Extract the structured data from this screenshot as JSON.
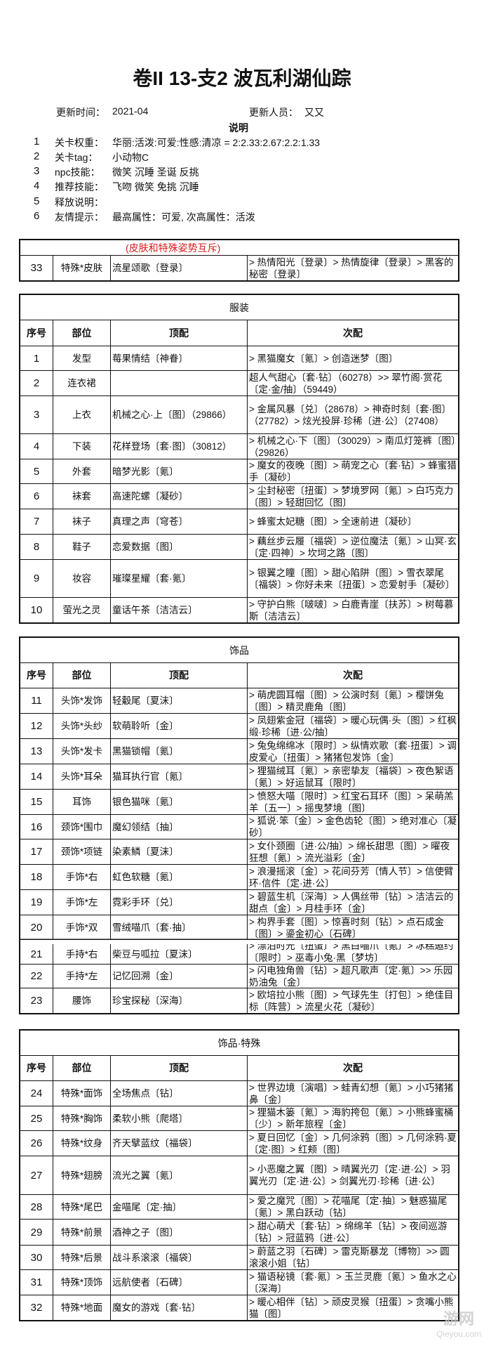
{
  "title": "卷II 13-支2 波瓦利湖仙踪",
  "update_time_label": "更新时间：",
  "update_time": "2021-04",
  "updater_label": "更新人员：",
  "updater": "又又",
  "notes_heading": "说明",
  "notes": [
    {
      "num": "1",
      "label": "关卡权重：",
      "value": "华丽:活泼:可爱:性感:清凉 = 2:2.33:2.67:2.2:1.33"
    },
    {
      "num": "2",
      "label": "关卡tag：",
      "value": "小动物C"
    },
    {
      "num": "3",
      "label": "npc技能：",
      "value": "微笑 沉睡 圣诞 反挑"
    },
    {
      "num": "4",
      "label": "推荐技能：",
      "value": "飞吻 微笑 免挑 沉睡"
    },
    {
      "num": "5",
      "label": "释放说明：",
      "value": ""
    },
    {
      "num": "6",
      "label": "友情提示：",
      "value": "最高属性：可爱, 次高属性：活泼"
    }
  ],
  "headers": [
    "序号",
    "部位",
    "顶配",
    "次配"
  ],
  "skin_table": {
    "note": "(皮肤和特殊姿势互斥)",
    "rows": [
      [
        "33",
        "特殊*皮肤",
        "流星颂歌〔登录〕",
        "> 热情阳光〔登录〕> 热情旋律〔登录〕> 黑客的秘密〔登录〕"
      ]
    ]
  },
  "clothing_table": {
    "title": "服装",
    "rows": [
      [
        "1",
        "发型",
        "莓果情结〔神眷〕",
        "> 黑猫魔女〔氪〕> 创造迷梦〔图〕"
      ],
      [
        "2",
        "连衣裙",
        "",
        "超人气甜心〔套·钻〕（60278）>> 翠竹阁·赏花〔定·金/抽〕（59449）"
      ],
      [
        "3",
        "上衣",
        "机械之心·上〔图〕（29866）",
        "> 金属风暴〔兑〕（28678）> 神奇时刻〔套·图〕（27782）> 炫光投屏·珍稀〔进·公〕（27408）"
      ],
      [
        "4",
        "下装",
        "花样登场〔套·图〕（30812）",
        "> 机械之心·下〔图〕（30029）> 南瓜灯笼裤〔图〕（29826）"
      ],
      [
        "5",
        "外套",
        "暗梦光影〔氪〕",
        "> 魔女的夜晚〔图〕> 萌宠之心〔套·钻〕> 蜂蜜猎手〔凝砂〕"
      ],
      [
        "6",
        "袜套",
        "高速陀螺〔凝砂〕",
        "> 尘封秘密〔扭蛋〕> 梦境罗网〔氪〕> 白巧克力〔图〕> 轻甜回忆〔图〕"
      ],
      [
        "7",
        "袜子",
        "真理之声〔穹苍〕",
        "> 蜂蜜太妃糖〔图〕> 全速前进〔凝砂〕"
      ],
      [
        "8",
        "鞋子",
        "恋爱数据〔图〕",
        "> 藕丝步云履〔福袋〕> 逆位魔法〔氪〕> 山冥·玄〔定·四神〕> 坎坷之路〔图〕"
      ],
      [
        "9",
        "妆容",
        "璀璨星耀〔套·氪〕",
        "> 银翼之瞳〔图〕> 甜心陷阱〔图〕> 雪衣翠尾〔福袋〕> 你好未来〔扭蛋〕> 恋爱射手〔凝砂〕"
      ],
      [
        "10",
        "萤光之灵",
        "童话午茶〔洁洁云〕",
        "> 守护白熊〔啵啵〕> 白鹿青崖〔扶苏〕> 树莓慕斯〔洁洁云〕"
      ]
    ]
  },
  "accessory_table": {
    "title": "饰品",
    "rows": [
      [
        "11",
        "头饰*发饰",
        "轻觳尾〔夏沫〕",
        "> 萌虎圆耳帽〔图〕> 公演时刻〔氪〕> 樱饼兔〔图〕> 精灵鹿角〔图〕"
      ],
      [
        "12",
        "头饰*头纱",
        "软萌聆听〔金〕",
        "> 凤翅紫金冠〔福袋〕> 暖心玩偶·头〔图〕> 红枫缎·珍稀〔进·公/抽〕"
      ],
      [
        "13",
        "头饰*发卡",
        "黑猫锁帽〔氪〕",
        "> 兔兔绵绵冰〔限时〕> 纵情欢歌〔套·扭蛋〕> 调皮爱心〔扭蛋〕> 猪猪包发饰〔金〕"
      ],
      [
        "14",
        "头饰*耳朵",
        "猫耳执行官〔氪〕",
        "> 狸猫绒耳〔氪〕> 亲密挚友〔福袋〕> 夜色絮语〔氪〕> 好运鼠耳〔限时〕"
      ],
      [
        "15",
        "耳饰",
        "银色猫咪〔氪〕",
        "> 愤怒大喵〔限时〕> 红宝石耳环〔图〕> 呆萌羔羊〔五一〕> 摇曳梦境〔图〕"
      ],
      [
        "16",
        "颈饰*围巾",
        "魔幻领结〔抽〕",
        "> 狐说·笨〔金〕> 金色齿轮〔图〕> 绝对准心〔凝砂〕"
      ],
      [
        "17",
        "颈饰*项链",
        "染素鳞〔夏沫〕",
        "> 女仆颈圈〔进·公/抽〕> 绵长甜思〔图〕> 曜夜狂想〔氪〕> 流光溢彩〔金〕"
      ],
      [
        "18",
        "手饰*右",
        "虹色软糖〔氪〕",
        "> 浪漫摇滚〔金〕> 花间芬芳〔情人节〕> 信使臂环·信件〔定·进·公〕"
      ],
      [
        "19",
        "手饰*左",
        "霓彩手环〔兑〕",
        "> 碧蓝生机〔深海〕> 人偶丝带〔钻〕> 洁洁云的甜点〔金〕> 月桂手环〔金〕"
      ],
      [
        "20",
        "手饰*双",
        "雪绒喵爪〔套·抽〕",
        "> 构界手套〔图〕> 惊喜时刻〔钻〕> 点石成金〔图〕> 鎏金初心〔石碑〕"
      ],
      [
        "21",
        "手持*右",
        "柴豆与呱拉〔夏沫〕",
        "> 漂泊时光〔扭蛋〕> 黑白喵爪〔氪〕> 冰糕邀约〔限时〕> 巫毒小兔·黑〔梦坊〕"
      ],
      [
        "22",
        "手持*左",
        "记忆回溯〔金〕",
        "> 闪电独角兽〔钻〕> 超凡歌声〔定·氪〕>> 乐园奶油兔〔金〕"
      ],
      [
        "23",
        "腰饰",
        "珍宝探秘〔深海〕",
        "> 欧培拉小熊〔图〕> 气球先生〔打包〕> 绝佳目标〔阵营〕> 流星火花〔凝砂〕"
      ]
    ]
  },
  "special_table": {
    "title": "饰品·特殊",
    "rows": [
      [
        "24",
        "特殊*面饰",
        "全场焦点〔钻〕",
        "> 世界边境〔演唱〕> 蛙青幻想〔氪〕> 小巧猪猪鼻〔金〕"
      ],
      [
        "25",
        "特殊*胸饰",
        "柔软小熊〔爬塔〕",
        "> 狸猫木篓〔氪〕> 海豹挎包〔氪〕> 小熊蜂蜜桶〔少〕> 新年旅程〔金〕"
      ],
      [
        "26",
        "特殊*纹身",
        "齐天擘蓝纹〔福袋〕",
        "> 夏日回忆〔金〕> 几何涂鸦〔图〕> 几何涂鸦·夏〔定·图〕> 红颊〔图〕"
      ],
      [
        "27",
        "特殊*翅膀",
        "流光之翼〔氪〕",
        "> 小恶魔之翼〔图〕> 晴翼光刃〔定·进·公〕> 羽翼光刃〔定·进·公〕> 剑翼光刃·珍稀〔进·公〕"
      ],
      [
        "28",
        "特殊*尾巴",
        "金喵尾〔定·抽〕",
        "> 爱之魔咒〔图〕> 花喵尾〔定·抽〕> 魅惑猫尾〔氪〕> 黑白跃动〔钻〕"
      ],
      [
        "29",
        "特殊*前景",
        "酒神之子〔图〕",
        "> 甜心萌犬〔套·钻〕> 绵绵羊〔钻〕> 夜间巡游〔钻〕> 冠蓝鸦〔进·公〕"
      ],
      [
        "30",
        "特殊*后景",
        "战斗系滚滚〔福袋〕",
        "> 蔚蓝之羽〔石碑〕> 雷克斯暴龙〔博物〕>> 圆滚滚小姐〔钻〕"
      ],
      [
        "31",
        "特殊*顶饰",
        "远航使者〔石碑〕",
        "> 猫语秘镜〔套·氪〕> 玉兰灵鹿〔氪〕> 鱼水之心〔深海〕"
      ],
      [
        "32",
        "特殊*地面",
        "魔女的游戏〔套·钻〕",
        "> 暖心相伴〔钻〕> 顽皮灵猴〔扭蛋〕> 贪嘴小熊猫〔图〕"
      ]
    ]
  },
  "watermark_logo": {
    "name": "Qieyou.com",
    "mark": "游网"
  },
  "colors": {
    "note_red": "#d81e1e",
    "border": "#111111"
  }
}
